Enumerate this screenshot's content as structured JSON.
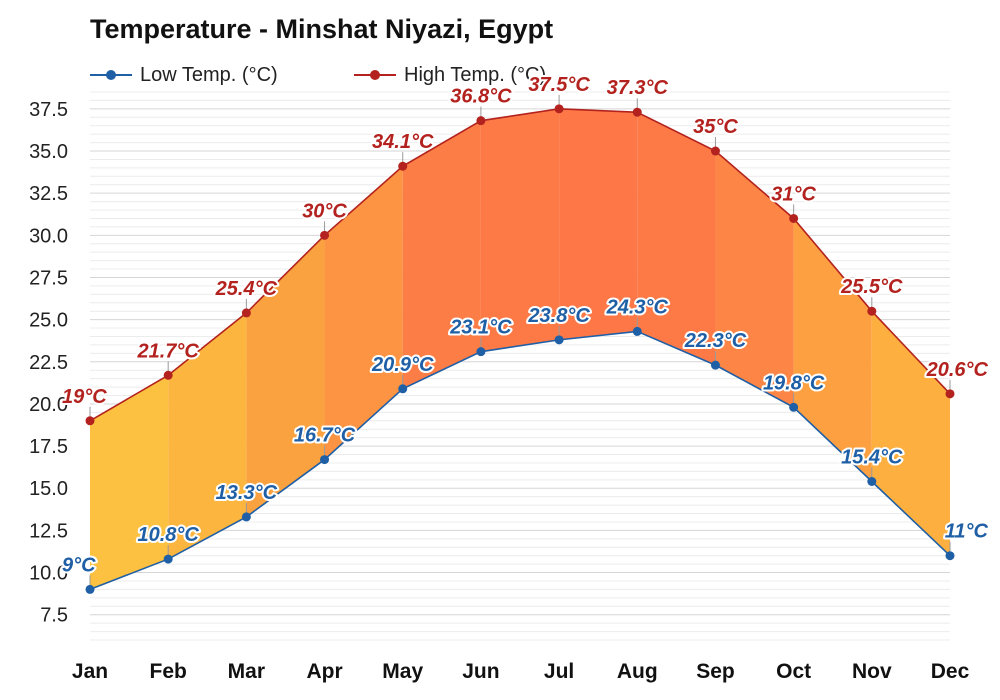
{
  "chart_data": {
    "type": "area",
    "title": "Temperature - Minshat Niyazi, Egypt",
    "xlabel": "",
    "ylabel": "",
    "categories": [
      "Jan",
      "Feb",
      "Mar",
      "Apr",
      "May",
      "Jun",
      "Jul",
      "Aug",
      "Sep",
      "Oct",
      "Nov",
      "Dec"
    ],
    "yticks": [
      "7.5",
      "10.0",
      "12.5",
      "15.0",
      "17.5",
      "20.0",
      "22.5",
      "25.0",
      "27.5",
      "30.0",
      "32.5",
      "35.0",
      "37.5"
    ],
    "ylim": [
      6.0,
      38.5
    ],
    "grid": true,
    "legend_position": "top-left",
    "series": [
      {
        "name": "Low Temp. (°C)",
        "color": "#1f5fa5",
        "values": [
          9,
          10.8,
          13.3,
          16.7,
          20.9,
          23.1,
          23.8,
          24.3,
          22.3,
          19.8,
          15.4,
          11
        ],
        "labels": [
          "9°C",
          "10.8°C",
          "13.3°C",
          "16.7°C",
          "20.9°C",
          "23.1°C",
          "23.8°C",
          "24.3°C",
          "22.3°C",
          "19.8°C",
          "15.4°C",
          "11°C"
        ]
      },
      {
        "name": "High Temp. (°C)",
        "color": "#b3221e",
        "values": [
          19,
          21.7,
          25.4,
          30,
          34.1,
          36.8,
          37.5,
          37.3,
          35,
          31,
          25.5,
          20.6
        ],
        "labels": [
          "19°C",
          "21.7°C",
          "25.4°C",
          "30°C",
          "34.1°C",
          "36.8°C",
          "37.5°C",
          "37.3°C",
          "35°C",
          "31°C",
          "25.5°C",
          "20.6°C"
        ]
      }
    ],
    "band_colors": [
      "#fcc140",
      "#fcb640",
      "#faa23f",
      "#fc9443",
      "#fd7d46",
      "#fd7a47",
      "#fd7846",
      "#fd7a47",
      "#fd8545",
      "#fda042",
      "#fdb040",
      "#fcc640"
    ]
  }
}
